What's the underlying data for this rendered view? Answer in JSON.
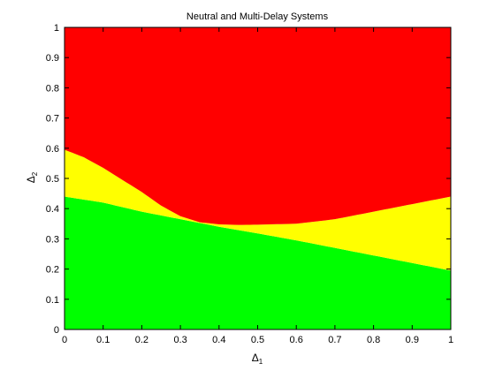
{
  "chart_data": {
    "type": "heatmap",
    "title": "Neutral and Multi-Delay Systems",
    "xlabel": {
      "symbol": "Δ",
      "subscript": "1"
    },
    "ylabel": {
      "symbol": "Δ",
      "subscript": "2"
    },
    "xlim": [
      0,
      1
    ],
    "ylim": [
      0,
      1
    ],
    "x_ticks": [
      "0",
      "0.1",
      "0.2",
      "0.3",
      "0.4",
      "0.5",
      "0.6",
      "0.7",
      "0.8",
      "0.9",
      "1"
    ],
    "y_ticks": [
      "0",
      "0.1",
      "0.2",
      "0.3",
      "0.4",
      "0.5",
      "0.6",
      "0.7",
      "0.8",
      "0.9",
      "1"
    ],
    "regions": [
      {
        "color": "#00ff00",
        "lower_boundary": "axis",
        "upper_boundary": "green_top"
      },
      {
        "color": "#ffff00",
        "lower_boundary": "green_top",
        "upper_boundary": "yellow_top"
      },
      {
        "color": "#ff0000",
        "lower_boundary": "yellow_top",
        "upper_boundary": "axis_top"
      }
    ],
    "boundaries": {
      "green_top": {
        "x": [
          0,
          0.1,
          0.2,
          0.3,
          0.4,
          0.5,
          0.6,
          0.7,
          0.8,
          0.9,
          1.0
        ],
        "y": [
          0.44,
          0.42,
          0.39,
          0.365,
          0.34,
          0.318,
          0.295,
          0.27,
          0.245,
          0.22,
          0.195
        ]
      },
      "yellow_top": {
        "x": [
          0,
          0.05,
          0.1,
          0.15,
          0.2,
          0.25,
          0.3,
          0.35,
          0.4,
          0.45,
          0.5,
          0.6,
          0.7,
          0.8,
          0.9,
          1.0
        ],
        "y": [
          0.595,
          0.57,
          0.535,
          0.495,
          0.455,
          0.41,
          0.375,
          0.355,
          0.348,
          0.346,
          0.347,
          0.35,
          0.365,
          0.39,
          0.415,
          0.44
        ]
      }
    },
    "grid": false,
    "legend": "none"
  }
}
